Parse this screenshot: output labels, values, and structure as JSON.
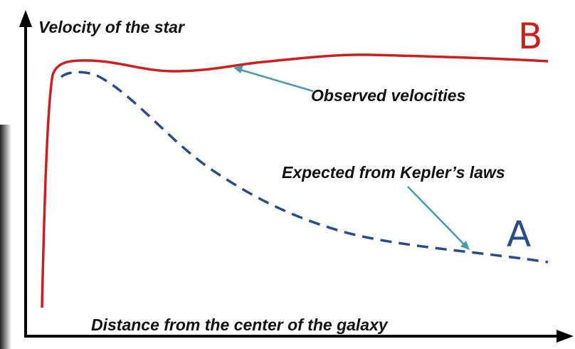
{
  "y_axis_label": "Velocity of the star",
  "x_axis_label": "Distance from the center of the galaxy",
  "curve_b": {
    "letter": "B",
    "label": "Observed velocities"
  },
  "curve_a": {
    "letter": "A",
    "label": "Expected from Kepler’s laws"
  }
}
